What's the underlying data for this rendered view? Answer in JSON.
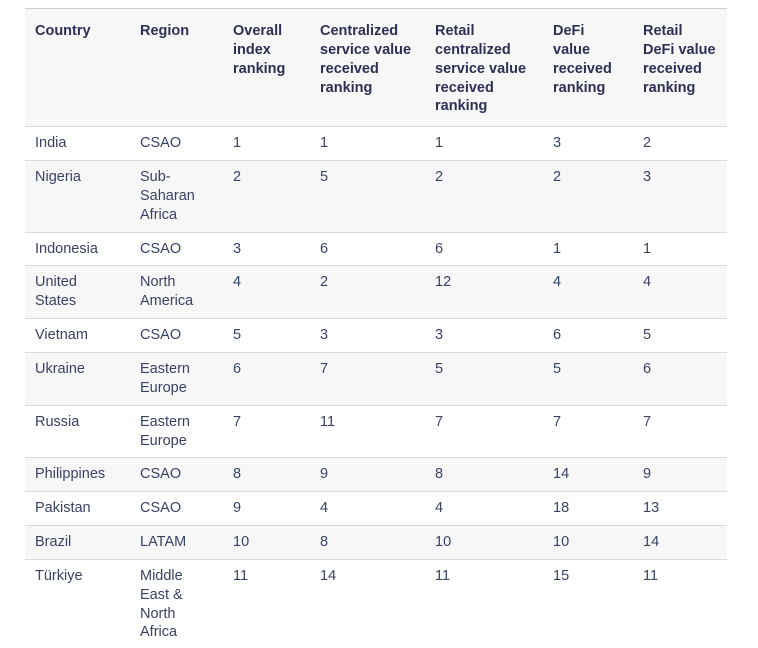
{
  "colors": {
    "header_background": "#f7f7f8",
    "stripe_background": "#f7f7f8",
    "row_background": "#ffffff",
    "border": "#d9d9dc",
    "header_text": "#2d3054",
    "body_text": "#394263"
  },
  "table": {
    "columns": [
      "Country",
      "Region",
      "Overall index ranking",
      "Centralized service value received ranking",
      "Retail centralized service value received ranking",
      "DeFi value received ranking",
      "Retail DeFi value received ranking"
    ],
    "rows": [
      {
        "country": "India",
        "region": "CSAO",
        "rankings": [
          "1",
          "1",
          "1",
          "3",
          "2"
        ]
      },
      {
        "country": "Nigeria",
        "region": "Sub-Saharan Africa",
        "rankings": [
          "2",
          "5",
          "2",
          "2",
          "3"
        ]
      },
      {
        "country": "Indonesia",
        "region": "CSAO",
        "rankings": [
          "3",
          "6",
          "6",
          "1",
          "1"
        ]
      },
      {
        "country": "United States",
        "region": "North America",
        "rankings": [
          "4",
          "2",
          "12",
          "4",
          "4"
        ]
      },
      {
        "country": "Vietnam",
        "region": "CSAO",
        "rankings": [
          "5",
          "3",
          "3",
          "6",
          "5"
        ]
      },
      {
        "country": "Ukraine",
        "region": "Eastern Europe",
        "rankings": [
          "6",
          "7",
          "5",
          "5",
          "6"
        ]
      },
      {
        "country": "Russia",
        "region": "Eastern Europe",
        "rankings": [
          "7",
          "11",
          "7",
          "7",
          "7"
        ]
      },
      {
        "country": "Philippines",
        "region": "CSAO",
        "rankings": [
          "8",
          "9",
          "8",
          "14",
          "9"
        ]
      },
      {
        "country": "Pakistan",
        "region": "CSAO",
        "rankings": [
          "9",
          "4",
          "4",
          "18",
          "13"
        ]
      },
      {
        "country": "Brazil",
        "region": "LATAM",
        "rankings": [
          "10",
          "8",
          "10",
          "10",
          "14"
        ]
      },
      {
        "country": "Türkiye",
        "region": "Middle East & North Africa",
        "rankings": [
          "11",
          "14",
          "11",
          "15",
          "11"
        ]
      }
    ]
  }
}
